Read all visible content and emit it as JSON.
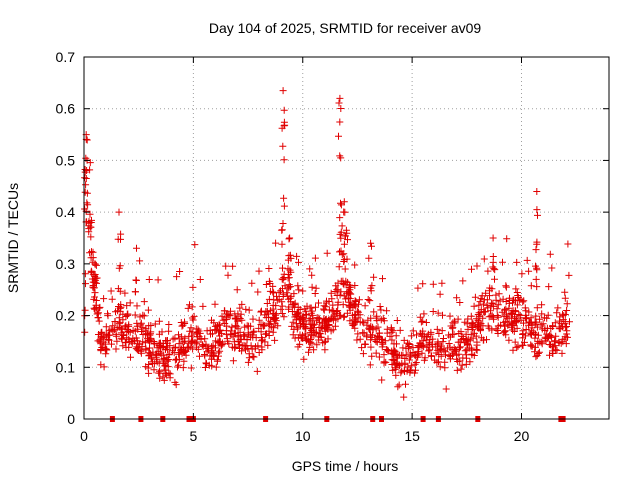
{
  "chart_data": {
    "type": "scatter",
    "title": "Day 104 of 2025, SRMTID for receiver av09",
    "xlabel": "GPS time / hours",
    "ylabel": "SRMTID / TECUs",
    "xlim": [
      0,
      24
    ],
    "ylim": [
      0,
      0.7
    ],
    "xticks": [
      0,
      5,
      10,
      15,
      20
    ],
    "xtick_labels": [
      "0",
      "5",
      "10",
      "15",
      "20"
    ],
    "yticks": [
      0,
      0.1,
      0.2,
      0.3,
      0.4,
      0.5,
      0.6,
      0.7
    ],
    "ytick_labels": [
      "0",
      "0.1",
      "0.2",
      "0.3",
      "0.4",
      "0.5",
      "0.6",
      "0.7"
    ],
    "grid": true,
    "marker": "+",
    "color": "#e00000",
    "x_range_of_data": [
      0,
      22.2
    ],
    "trend": [
      {
        "x": 0.0,
        "y": 0.16
      },
      {
        "x": 0.15,
        "y": 0.45
      },
      {
        "x": 0.4,
        "y": 0.28
      },
      {
        "x": 0.8,
        "y": 0.14
      },
      {
        "x": 1.5,
        "y": 0.19
      },
      {
        "x": 2.2,
        "y": 0.17
      },
      {
        "x": 2.8,
        "y": 0.14
      },
      {
        "x": 3.5,
        "y": 0.13
      },
      {
        "x": 4.2,
        "y": 0.12
      },
      {
        "x": 5.0,
        "y": 0.17
      },
      {
        "x": 5.8,
        "y": 0.13
      },
      {
        "x": 6.5,
        "y": 0.19
      },
      {
        "x": 7.5,
        "y": 0.15
      },
      {
        "x": 8.5,
        "y": 0.19
      },
      {
        "x": 9.2,
        "y": 0.26
      },
      {
        "x": 10.0,
        "y": 0.17
      },
      {
        "x": 11.0,
        "y": 0.18
      },
      {
        "x": 11.8,
        "y": 0.26
      },
      {
        "x": 12.5,
        "y": 0.19
      },
      {
        "x": 13.5,
        "y": 0.16
      },
      {
        "x": 14.5,
        "y": 0.11
      },
      {
        "x": 15.5,
        "y": 0.15
      },
      {
        "x": 16.5,
        "y": 0.14
      },
      {
        "x": 17.5,
        "y": 0.15
      },
      {
        "x": 18.5,
        "y": 0.21
      },
      {
        "x": 19.5,
        "y": 0.2
      },
      {
        "x": 20.5,
        "y": 0.17
      },
      {
        "x": 21.5,
        "y": 0.16
      },
      {
        "x": 22.2,
        "y": 0.19
      }
    ],
    "peaks": [
      {
        "x": 0.1,
        "y": 0.55,
        "n": 14,
        "spread": 0.15
      },
      {
        "x": 0.5,
        "y": 0.3,
        "n": 10,
        "spread": 0.25
      },
      {
        "x": 1.6,
        "y": 0.4,
        "n": 6,
        "spread": 0.15
      },
      {
        "x": 2.4,
        "y": 0.33,
        "n": 6,
        "spread": 0.15
      },
      {
        "x": 9.1,
        "y": 0.635,
        "n": 12,
        "spread": 0.15
      },
      {
        "x": 9.4,
        "y": 0.35,
        "n": 10,
        "spread": 0.2
      },
      {
        "x": 11.7,
        "y": 0.62,
        "n": 12,
        "spread": 0.15
      },
      {
        "x": 11.9,
        "y": 0.42,
        "n": 12,
        "spread": 0.25
      },
      {
        "x": 20.7,
        "y": 0.44,
        "n": 8,
        "spread": 0.12
      },
      {
        "x": 18.7,
        "y": 0.35,
        "n": 6,
        "spread": 0.2
      },
      {
        "x": 13.1,
        "y": 0.34,
        "n": 4,
        "spread": 0.15
      }
    ],
    "zero_markers_x": [
      1.3,
      2.6,
      3.6,
      4.8,
      5.0,
      8.3,
      11.1,
      13.2,
      13.6,
      15.5,
      16.2,
      18.0,
      21.8,
      21.9
    ]
  }
}
